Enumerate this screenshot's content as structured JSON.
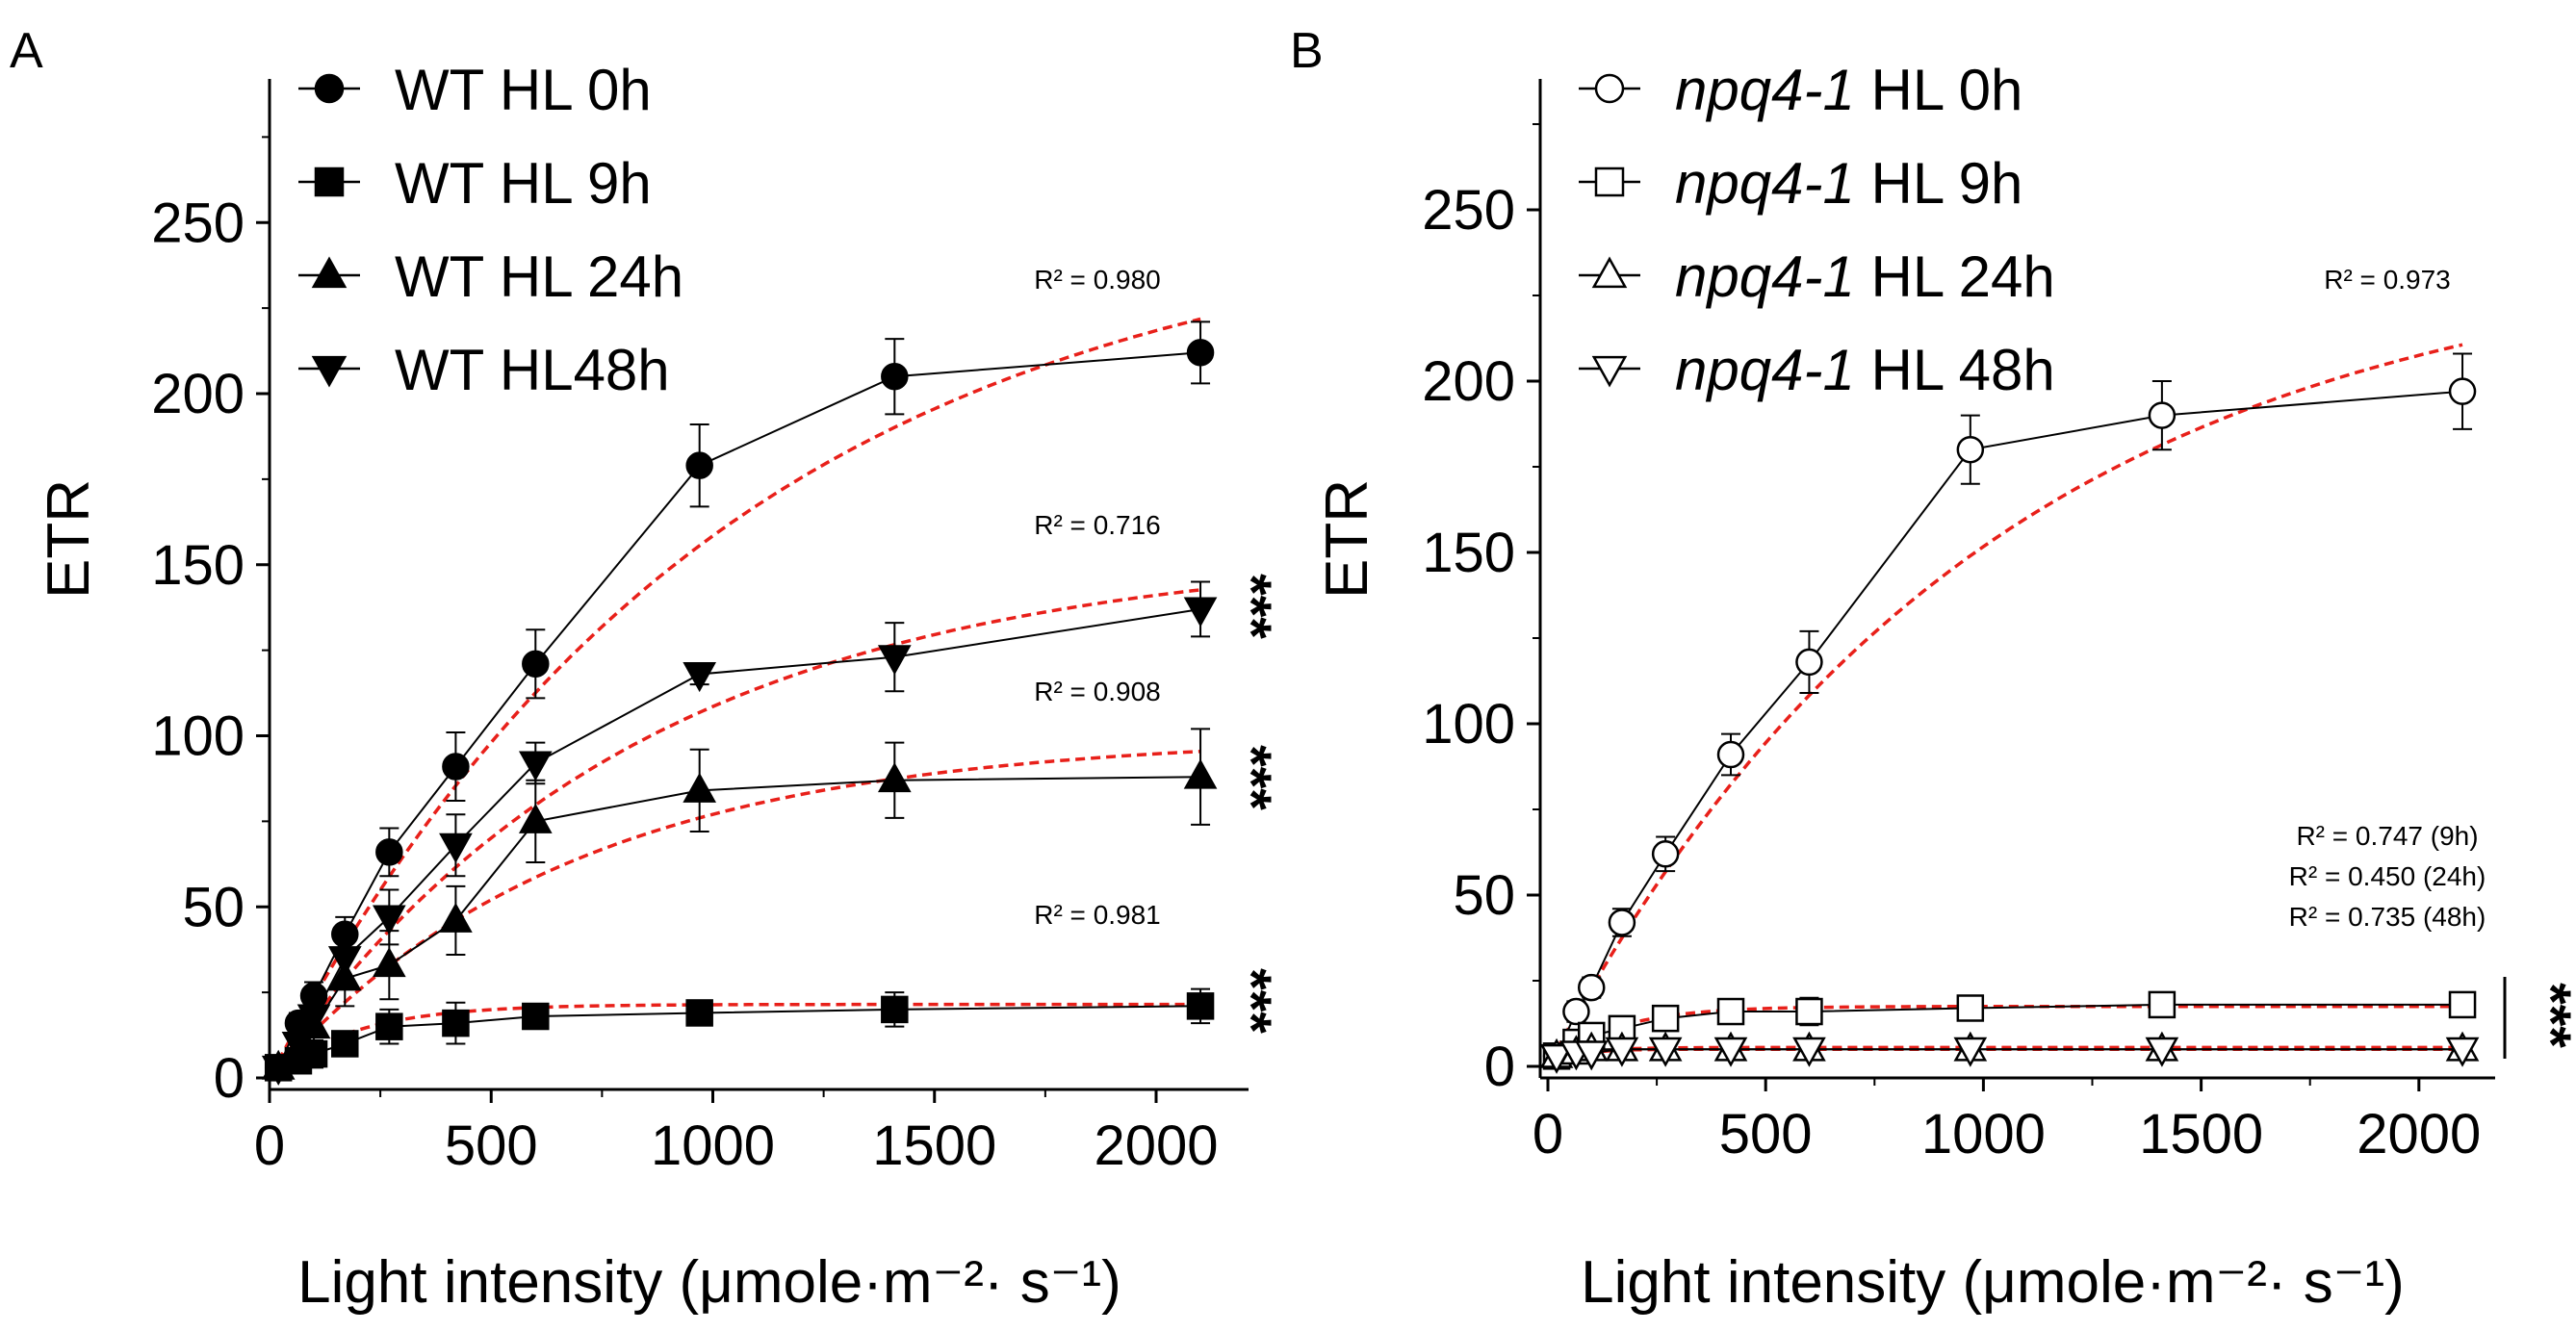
{
  "panels": [
    {
      "letter": "A",
      "xlabel": "Light intensity (μmole·m⁻²· s⁻¹)",
      "ylabel": "ETR",
      "xticks": [
        "0",
        "500",
        "1000",
        "1500",
        "2000"
      ],
      "yticks": [
        "0",
        "50",
        "100",
        "150",
        "200",
        "250"
      ],
      "legend": [
        {
          "label": "WT HL 0h",
          "marker": "circle",
          "filled": true
        },
        {
          "label": "WT HL 9h",
          "marker": "square",
          "filled": true
        },
        {
          "label": "WT HL 24h",
          "marker": "triangle-up",
          "filled": true
        },
        {
          "label": "WT HL48h",
          "marker": "triangle-down",
          "filled": true
        }
      ],
      "r2": [
        "R² = 0.980",
        "R² = 0.716",
        "R² = 0.908",
        "R² = 0.981"
      ],
      "sig": [
        "***",
        "***",
        "***"
      ]
    },
    {
      "letter": "B",
      "xlabel": "Light intensity (μmole·m⁻²· s⁻¹)",
      "ylabel": "ETR",
      "xticks": [
        "0",
        "500",
        "1000",
        "1500",
        "2000"
      ],
      "yticks": [
        "0",
        "50",
        "100",
        "150",
        "200",
        "250"
      ],
      "legend": [
        {
          "italic": "npq4-1",
          "label": " HL 0h",
          "marker": "circle",
          "filled": false
        },
        {
          "italic": "npq4-1",
          "label": " HL 9h",
          "marker": "square",
          "filled": false
        },
        {
          "italic": "npq4-1",
          "label": " HL 24h",
          "marker": "triangle-up",
          "filled": false
        },
        {
          "italic": "npq4-1",
          "label": " HL 48h",
          "marker": "triangle-down",
          "filled": false
        }
      ],
      "r2": [
        "R² = 0.973",
        "R² = 0.747 (9h)",
        "R² = 0.450 (24h)",
        "R² = 0.735 (48h)"
      ],
      "sig": [
        "***"
      ]
    }
  ],
  "chart_data": [
    {
      "type": "scatter",
      "title": "",
      "xlabel": "Light intensity (μmole·m⁻²· s⁻¹)",
      "ylabel": "ETR",
      "xlim": [
        0,
        2200
      ],
      "ylim": [
        0,
        280
      ],
      "fit_color": "#e8201a",
      "x": [
        20,
        65,
        100,
        170,
        270,
        420,
        600,
        970,
        1410,
        2100
      ],
      "series": [
        {
          "name": "WT HL 0h",
          "marker": "circle",
          "filled": true,
          "values": [
            3,
            16,
            24,
            42,
            66,
            91,
            121,
            179,
            205,
            212
          ],
          "errors": [
            1,
            3,
            4,
            5,
            7,
            10,
            10,
            12,
            11,
            9
          ],
          "fit": {
            "pmax": 255,
            "k": 1030,
            "r2": "R² = 0.980"
          }
        },
        {
          "name": "WT HL 9h",
          "marker": "square",
          "filled": true,
          "values": [
            3,
            5,
            7,
            10,
            15,
            16,
            18,
            19,
            20,
            21
          ],
          "errors": [
            1,
            3,
            4,
            3,
            5,
            6,
            2,
            3,
            5,
            5
          ],
          "fit": {
            "pmax": 21.5,
            "k": 190,
            "r2": "R² = 0.981"
          }
        },
        {
          "name": "WT HL 24h",
          "marker": "triangle-up",
          "filled": true,
          "values": [
            3,
            8,
            15,
            29,
            33,
            46,
            75,
            84,
            87,
            88
          ],
          "errors": [
            1,
            4,
            6,
            8,
            10,
            10,
            12,
            12,
            11,
            14
          ],
          "fit": {
            "pmax": 100,
            "k": 680,
            "r2": "R² = 0.908"
          }
        },
        {
          "name": "WT HL48h",
          "marker": "triangle-down",
          "filled": true,
          "values": [
            3,
            10,
            18,
            35,
            47,
            68,
            92,
            118,
            123,
            137
          ],
          "errors": [
            1,
            4,
            5,
            7,
            8,
            9,
            6,
            3,
            10,
            8
          ],
          "fit": {
            "pmax": 155,
            "k": 830,
            "r2": "R² = 0.716"
          }
        }
      ]
    },
    {
      "type": "scatter",
      "title": "",
      "xlabel": "Light intensity (μmole·m⁻²· s⁻¹)",
      "ylabel": "ETR",
      "xlim": [
        0,
        2200
      ],
      "ylim": [
        0,
        280
      ],
      "fit_color": "#e8201a",
      "x": [
        20,
        65,
        100,
        170,
        270,
        420,
        600,
        970,
        1410,
        2100
      ],
      "series": [
        {
          "name": "npq4-1 HL 0h",
          "marker": "circle",
          "filled": false,
          "values": [
            3,
            16,
            23,
            42,
            62,
            91,
            118,
            180,
            190,
            197
          ],
          "errors": [
            1,
            3,
            3,
            4,
            5,
            6,
            9,
            10,
            10,
            11
          ],
          "fit": {
            "pmax": 240,
            "k": 1000,
            "r2": "R² = 0.973"
          }
        },
        {
          "name": "npq4-1 HL 9h",
          "marker": "square",
          "filled": false,
          "values": [
            3,
            7,
            9,
            11,
            14,
            16,
            16,
            17,
            18,
            18
          ],
          "errors": [
            1,
            2,
            2,
            2,
            3,
            3,
            4,
            2,
            2,
            2
          ],
          "fit": {
            "pmax": 17.5,
            "k": 150,
            "r2": "R² = 0.747 (9h)"
          }
        },
        {
          "name": "npq4-1 HL 24h",
          "marker": "triangle-up",
          "filled": false,
          "values": [
            3,
            4,
            5,
            5,
            5,
            5,
            5,
            5,
            5,
            5
          ],
          "errors": [
            1,
            1,
            1,
            1,
            1,
            1,
            1,
            1,
            1,
            1
          ],
          "fit": {
            "pmax": 5.5,
            "k": 70,
            "r2": "R² = 0.450 (24h)"
          }
        },
        {
          "name": "npq4-1 HL 48h",
          "marker": "triangle-down",
          "filled": false,
          "values": [
            3,
            4,
            4,
            5,
            5,
            5,
            5,
            5,
            5,
            5
          ],
          "errors": [
            1,
            1,
            1,
            1,
            1,
            1,
            1,
            1,
            1,
            1
          ],
          "fit": {
            "pmax": 5,
            "k": 60,
            "r2": "R² = 0.735 (48h)"
          }
        }
      ]
    }
  ]
}
